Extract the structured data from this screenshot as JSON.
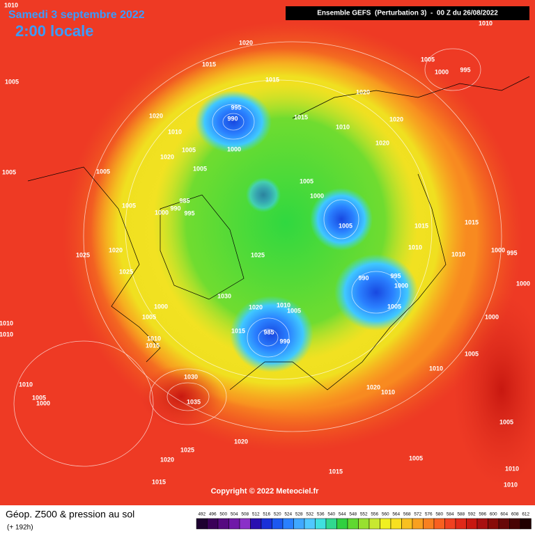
{
  "header": {
    "title": "Samedi 3 septembre 2022",
    "time": "2:00 locale",
    "run": "Ensemble GEFS  (Perturbation 3)  -  00 Z du 26/08/2022"
  },
  "map": {
    "isobar_labels": [
      1010,
      1010,
      1020,
      1015,
      1005,
      1015,
      1020,
      1005,
      1000,
      995,
      995,
      990,
      1020,
      1015,
      1010,
      1020,
      1010,
      1000,
      1005,
      1020,
      1020,
      1005,
      1005,
      1005,
      1005,
      1000,
      985,
      1005,
      990,
      1000,
      995,
      1005,
      1015,
      1015,
      1010,
      1020,
      1025,
      1025,
      1000,
      995,
      1010,
      1025,
      995,
      990,
      1000,
      1000,
      1030,
      1010,
      1020,
      1005,
      1005,
      1000,
      1005,
      1000,
      1010,
      1010,
      1015,
      985,
      990,
      1010,
      1015,
      1005,
      1010,
      1010,
      1030,
      1020,
      1010,
      1005,
      1000,
      1035,
      1005,
      1020,
      1025,
      1020,
      1005,
      1015,
      1010,
      1015,
      1010
    ]
  },
  "copyright": "Copyright © 2022 Meteociel.fr",
  "legend": {
    "title": "Géop. Z500 & pression au sol",
    "subtitle": "(+ 192h)",
    "scale": [
      492,
      496,
      500,
      504,
      508,
      512,
      516,
      520,
      524,
      528,
      532,
      536,
      540,
      544,
      548,
      552,
      556,
      560,
      564,
      568,
      572,
      576,
      580,
      584,
      588,
      592,
      596,
      600,
      604,
      608,
      612
    ],
    "colors": [
      "#1e0030",
      "#3a0058",
      "#560a80",
      "#7018a8",
      "#8a30c8",
      "#2a10b0",
      "#1a30d8",
      "#1c58f0",
      "#2a80ff",
      "#40a8ff",
      "#50c8ff",
      "#40e0e0",
      "#30d890",
      "#30d040",
      "#60d830",
      "#98e030",
      "#c8e830",
      "#f0f020",
      "#f8e020",
      "#f8c020",
      "#f8a020",
      "#f88020",
      "#f86020",
      "#f04020",
      "#e02818",
      "#c81810",
      "#a81010",
      "#880c08",
      "#680808",
      "#480404",
      "#200000"
    ]
  }
}
